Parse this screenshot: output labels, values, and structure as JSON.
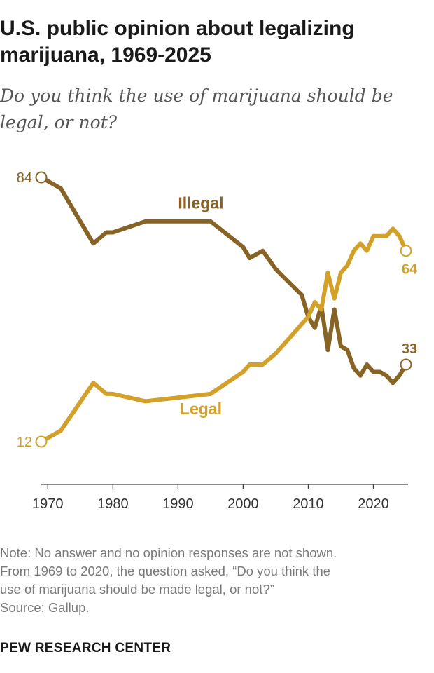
{
  "header": {
    "title_line1": "U.S. public opinion about legalizing",
    "title_line2": "marijuana, 1969-2025",
    "subtitle_line1": "Do you think the use of marijuana should be",
    "subtitle_line2": "legal, or not?"
  },
  "chart_data": {
    "type": "line",
    "title": "U.S. public opinion about legalizing marijuana, 1969-2025",
    "xlabel": "",
    "ylabel": "",
    "xlim": [
      1969,
      2025
    ],
    "ylim": [
      0,
      90
    ],
    "x_ticks": [
      1970,
      1980,
      1990,
      2000,
      2010,
      2020
    ],
    "grid": false,
    "legend": "inline labels",
    "series": [
      {
        "name": "Illegal",
        "color": "#876425",
        "label_position": [
          1993.5,
          77
        ],
        "end_labels": {
          "start": "84",
          "end": "33"
        },
        "points": [
          [
            1969,
            84
          ],
          [
            1972,
            81
          ],
          [
            1977,
            66
          ],
          [
            1979,
            69
          ],
          [
            1980,
            69
          ],
          [
            1985,
            72
          ],
          [
            1995,
            72
          ],
          [
            2000,
            65
          ],
          [
            2001,
            62
          ],
          [
            2003,
            64
          ],
          [
            2005,
            59
          ],
          [
            2009,
            52
          ],
          [
            2010,
            46
          ],
          [
            2011,
            43
          ],
          [
            2012,
            49
          ],
          [
            2013,
            37
          ],
          [
            2014,
            48
          ],
          [
            2015,
            38
          ],
          [
            2016,
            37
          ],
          [
            2017,
            32
          ],
          [
            2018,
            30
          ],
          [
            2019,
            33
          ],
          [
            2020,
            31
          ],
          [
            2021,
            31
          ],
          [
            2022,
            30
          ],
          [
            2023,
            28
          ],
          [
            2024,
            30
          ],
          [
            2025,
            33
          ]
        ]
      },
      {
        "name": "Legal",
        "color": "#d3a12a",
        "label_position": [
          1993.5,
          21
        ],
        "end_labels": {
          "start": "12",
          "end": "64"
        },
        "points": [
          [
            1969,
            12
          ],
          [
            1972,
            15
          ],
          [
            1977,
            28
          ],
          [
            1979,
            25
          ],
          [
            1980,
            25
          ],
          [
            1985,
            23
          ],
          [
            1995,
            25
          ],
          [
            2000,
            31
          ],
          [
            2001,
            33
          ],
          [
            2003,
            33
          ],
          [
            2005,
            36
          ],
          [
            2009,
            44
          ],
          [
            2010,
            46
          ],
          [
            2011,
            50
          ],
          [
            2012,
            48
          ],
          [
            2013,
            58
          ],
          [
            2014,
            51
          ],
          [
            2015,
            58
          ],
          [
            2016,
            60
          ],
          [
            2017,
            64
          ],
          [
            2018,
            66
          ],
          [
            2019,
            64
          ],
          [
            2020,
            68
          ],
          [
            2021,
            68
          ],
          [
            2022,
            68
          ],
          [
            2023,
            70
          ],
          [
            2024,
            68
          ],
          [
            2025,
            64
          ]
        ]
      }
    ]
  },
  "notes": {
    "line1": "Note: No answer and no opinion responses are not shown.",
    "line2": "From 1969 to 2020, the question asked, “Do you think the",
    "line3": "use of marijuana should be made legal, or not?”",
    "line4": "Source: Gallup."
  },
  "branding": {
    "org": "PEW RESEARCH CENTER"
  }
}
